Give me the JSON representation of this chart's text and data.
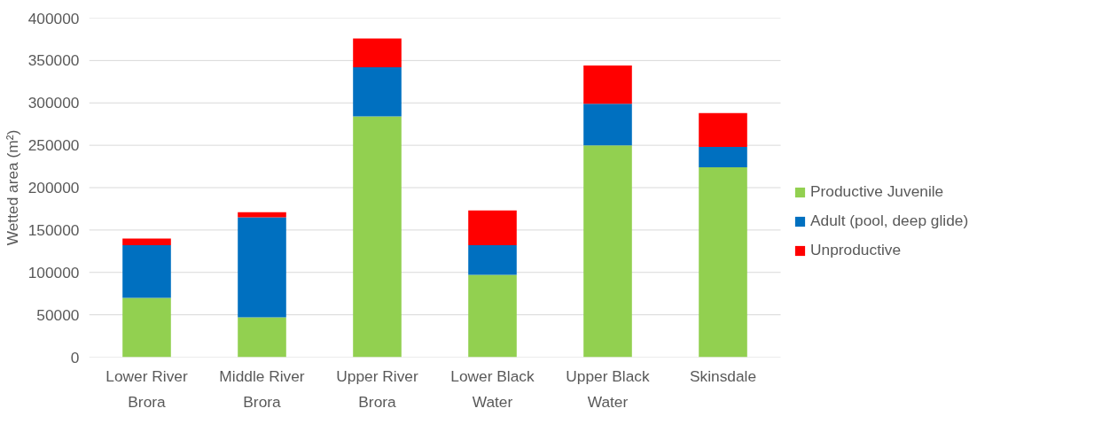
{
  "chart_data": {
    "type": "bar",
    "stacked": true,
    "ylabel": "Wetted area (m²)",
    "categories": [
      "Lower River Brora",
      "Middle River Brora",
      "Upper River Brora",
      "Lower Black Water",
      "Upper Black Water",
      "Skinsdale"
    ],
    "series": [
      {
        "name": "Productive Juvenile",
        "color": "#92d050",
        "values": [
          70000,
          47000,
          284000,
          97000,
          250000,
          224000
        ]
      },
      {
        "name": "Adult (pool, deep glide)",
        "color": "#0070c0",
        "values": [
          62000,
          118000,
          58000,
          35000,
          49000,
          24000
        ]
      },
      {
        "name": "Unproductive",
        "color": "#ff0000",
        "values": [
          8000,
          6000,
          34000,
          41000,
          45000,
          40000
        ]
      }
    ],
    "ylim": [
      0,
      400000
    ],
    "yticks": [
      0,
      50000,
      100000,
      150000,
      200000,
      250000,
      300000,
      350000,
      400000
    ],
    "grid": "y",
    "legend": "right"
  }
}
